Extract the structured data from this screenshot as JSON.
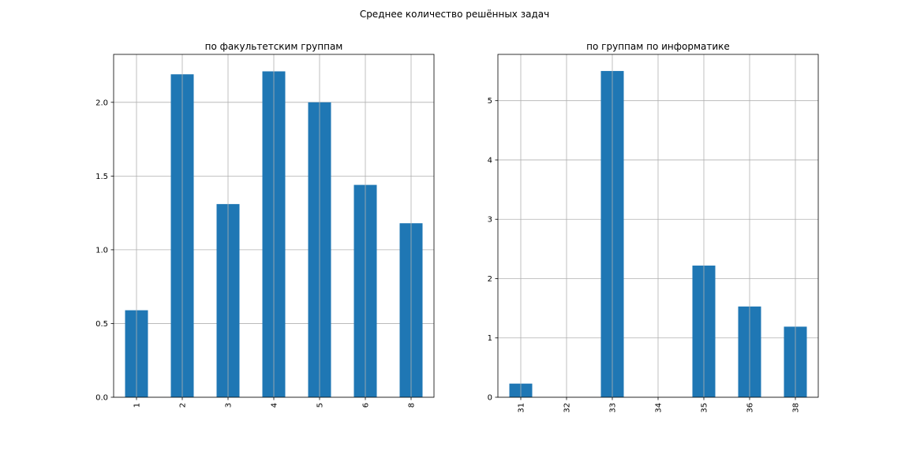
{
  "figure": {
    "suptitle": "Среднее количество решённых задач"
  },
  "style": {
    "bar_color": "#1f77b4",
    "grid_color": "#b0b0b0",
    "background": "#ffffff"
  },
  "chart_data": [
    {
      "type": "bar",
      "title": "по факультетским группам",
      "xlabel": "",
      "ylabel": "",
      "categories": [
        "1",
        "2",
        "3",
        "4",
        "5",
        "6",
        "8"
      ],
      "values": [
        0.59,
        2.19,
        1.31,
        2.21,
        2.0,
        1.44,
        1.18
      ],
      "ylim": [
        0,
        2.325
      ],
      "yticks": [
        "0.0",
        "0.5",
        "1.0",
        "1.5",
        "2.0"
      ],
      "grid": true,
      "x_tick_rotation": 90
    },
    {
      "type": "bar",
      "title": "по группам по информатике",
      "xlabel": "",
      "ylabel": "",
      "categories": [
        "31",
        "32",
        "33",
        "34",
        "35",
        "36",
        "38"
      ],
      "values": [
        0.23,
        0,
        5.5,
        0,
        2.22,
        1.53,
        1.19
      ],
      "ylim": [
        0,
        5.78
      ],
      "yticks": [
        "0",
        "1",
        "2",
        "3",
        "4",
        "5"
      ],
      "grid": true,
      "x_tick_rotation": 90
    }
  ]
}
